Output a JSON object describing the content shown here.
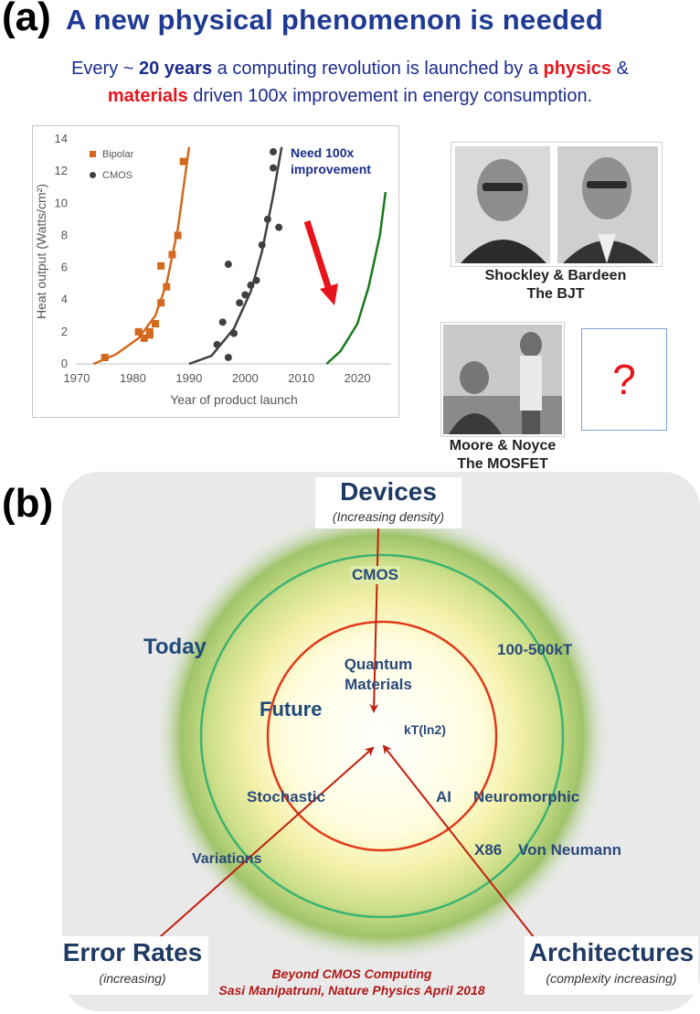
{
  "panel_a": {
    "label": "(a)",
    "title": "A new physical phenomenon is needed",
    "subtitle": {
      "part1": "Every ~ ",
      "bold1": "20 years",
      "part2": "  a computing revolution is launched by a ",
      "red1": "physics",
      "part3": " &",
      "red2": "materials",
      "part4": " driven 100x improvement in energy consumption."
    },
    "photo1_caption_line1": "Shockley & Bardeen",
    "photo1_caption_line2": "The BJT",
    "photo2_caption_line1": "Moore & Noyce",
    "photo2_caption_line2": "The MOSFET",
    "question_mark": "?",
    "colors": {
      "bipolar": "#d2691e",
      "cmos": "#404040",
      "future": "#1a7a1a",
      "arrow": "#e8141b",
      "title": "#1f3a93"
    }
  },
  "chart_data": {
    "type": "scatter",
    "xlabel": "Year of product launch",
    "ylabel": "Heat output (Watts/cm²)",
    "xlim": [
      1970,
      2026
    ],
    "ylim": [
      0,
      14
    ],
    "xticks": [
      1970,
      1980,
      1990,
      2000,
      2010,
      2020
    ],
    "yticks": [
      0,
      2,
      4,
      6,
      8,
      10,
      12,
      14
    ],
    "annotation_line1": "Need 100x",
    "annotation_line2": "improvement",
    "series": [
      {
        "name": "Bipolar",
        "marker": "square",
        "color": "#d2691e",
        "points": [
          [
            1975,
            0.4
          ],
          [
            1981,
            2.0
          ],
          [
            1982,
            1.6
          ],
          [
            1983,
            1.8
          ],
          [
            1983,
            2.0
          ],
          [
            1984,
            2.5
          ],
          [
            1985,
            3.8
          ],
          [
            1985,
            6.1
          ],
          [
            1986,
            4.8
          ],
          [
            1987,
            6.8
          ],
          [
            1988,
            8.0
          ],
          [
            1989,
            12.6
          ]
        ]
      },
      {
        "name": "CMOS",
        "marker": "circle",
        "color": "#404040",
        "points": [
          [
            1995,
            1.2
          ],
          [
            1996,
            2.6
          ],
          [
            1997,
            0.4
          ],
          [
            1997,
            6.2
          ],
          [
            1998,
            1.9
          ],
          [
            1999,
            3.8
          ],
          [
            2000,
            4.3
          ],
          [
            2001,
            4.9
          ],
          [
            2002,
            5.2
          ],
          [
            2003,
            7.4
          ],
          [
            2004,
            9.0
          ],
          [
            2005,
            12.2
          ],
          [
            2005,
            13.2
          ],
          [
            2006,
            8.5
          ]
        ]
      }
    ],
    "fits": [
      {
        "color": "#d2691e",
        "points": [
          [
            1973,
            0
          ],
          [
            1977,
            0.6
          ],
          [
            1981,
            1.6
          ],
          [
            1984,
            3.0
          ],
          [
            1986,
            5.0
          ],
          [
            1988,
            8.4
          ],
          [
            1990,
            13.5
          ]
        ]
      },
      {
        "color": "#404040",
        "points": [
          [
            1990,
            0
          ],
          [
            1994,
            0.5
          ],
          [
            1998,
            2.2
          ],
          [
            2001,
            4.5
          ],
          [
            2003,
            7.0
          ],
          [
            2005,
            10.5
          ],
          [
            2006.5,
            13.5
          ]
        ]
      },
      {
        "color": "#1a7a1a",
        "points": [
          [
            2014.5,
            0
          ],
          [
            2017,
            0.8
          ],
          [
            2020,
            2.5
          ],
          [
            2022,
            4.8
          ],
          [
            2024,
            8.0
          ],
          [
            2025,
            10.7
          ]
        ]
      }
    ]
  },
  "panel_b": {
    "label": "(b)",
    "devices": "Devices",
    "devices_sub": "(Increasing density)",
    "cmos": "CMOS",
    "today": "Today",
    "range": "100-500kT",
    "quantum_line1": "Quantum",
    "quantum_line2": "Materials",
    "future": "Future",
    "limit": "kT(ln2)",
    "stochastic": "Stochastic",
    "ai": "AI",
    "neuromorphic": "Neuromorphic",
    "variations": "Variations",
    "x86": "X86",
    "von_neumann": "Von Neumann",
    "error_rates": "Error Rates",
    "error_sub": "(increasing)",
    "architectures": "Architectures",
    "arch_sub": "(complexity increasing)",
    "ref_line1": "Beyond CMOS Computing",
    "ref_line2": "Sasi Manipatruni, Nature Physics April 2018",
    "colors": {
      "outer_ring": "#3cb371",
      "inner_ring": "#e03a1a",
      "arrows": "#c02010",
      "text": "#2a4a7a"
    }
  }
}
